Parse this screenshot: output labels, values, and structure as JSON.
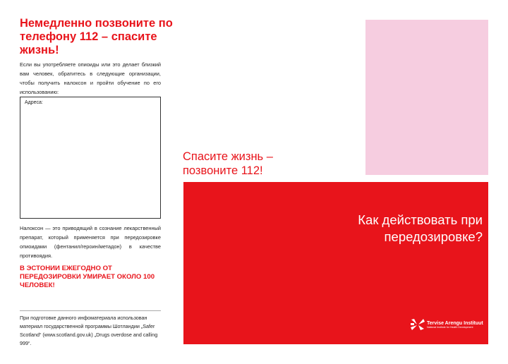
{
  "left": {
    "title": "Немедленно позвоните по телефону 112 – спасите жизнь!",
    "intro": "Если вы употребляете опиоиды или это делает близкий вам человек, обратитесь в следующие организации, чтобы получить налоксон и пройти обучение по его использованию:",
    "address_label": "Адреса:",
    "naloxone": "Налоксон — это приводящий в сознание лекарственный препарат, который применяется при передозировке опиоидами (фентанил/героин/метадон) в качестве противоядия.",
    "warning": "В ЭСТОНИИ ЕЖЕГОДНО ОТ ПЕРЕДОЗИРОВКИ УМИРАЕТ ОКОЛО 100 ЧЕЛОВЕК!",
    "footnote": "При подготовке данного инфоматериала использован материал государственной программы Шотландии „Safer Scotland“ (www.scotland.gov.uk) „Drugs overdose and calling 999“."
  },
  "middle": {
    "call": "Спасите жизнь – позвоните 112!"
  },
  "cover": {
    "heading": "Как действовать при передозировке?",
    "logo_name": "Tervise Arengu Instituut",
    "logo_sub": "National Institute for Health Development"
  },
  "colors": {
    "red": "#e8141b",
    "pink": "#f6cde0"
  }
}
